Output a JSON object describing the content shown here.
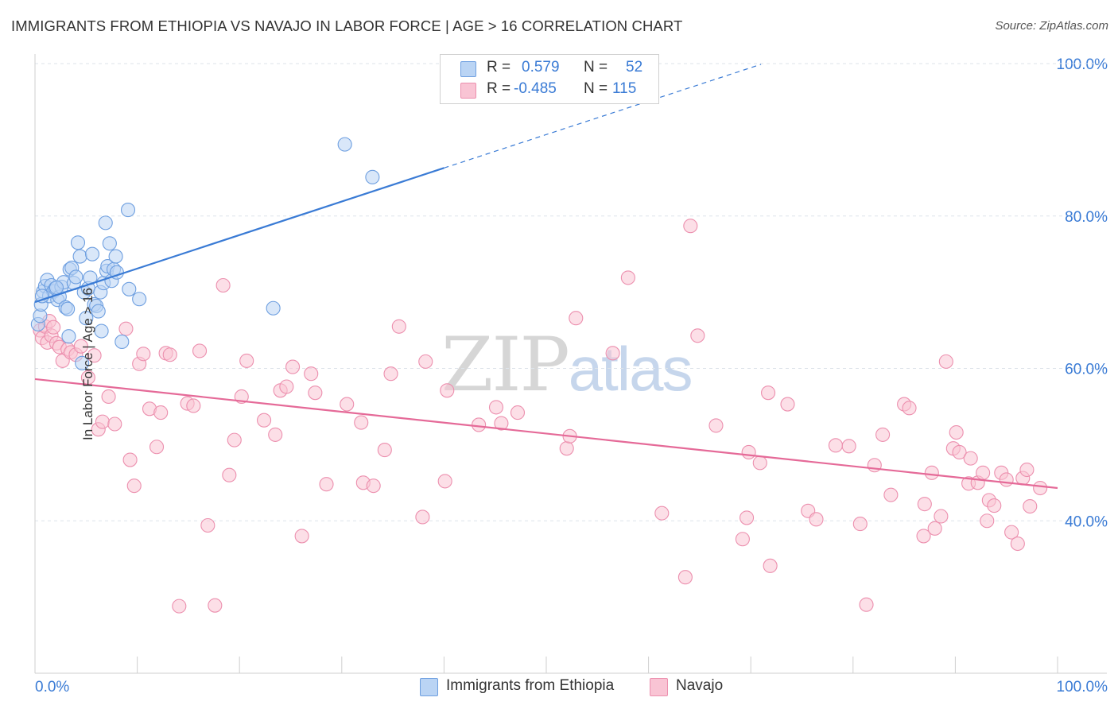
{
  "title": "IMMIGRANTS FROM ETHIOPIA VS NAVAJO IN LABOR FORCE | AGE > 16 CORRELATION CHART",
  "source": "Source: ZipAtlas.com",
  "watermark": {
    "zip": "ZIP",
    "atlas": "atlas"
  },
  "stats": {
    "r_label": "R =",
    "n_label": "N =",
    "rows": [
      {
        "r": "0.579",
        "n": "52",
        "color": "#bad4f4",
        "border": "#6e9fe0"
      },
      {
        "r": "-0.485",
        "n": "115",
        "color": "#f9c4d4",
        "border": "#ec8fae"
      }
    ]
  },
  "legend": [
    {
      "label": "Immigrants from Ethiopia",
      "color": "#bad4f4",
      "border": "#6e9fe0"
    },
    {
      "label": "Navajo",
      "color": "#f9c4d4",
      "border": "#ec8fae"
    }
  ],
  "colors": {
    "blue": "#3a7bd5",
    "blue_fill": "#bad4f4",
    "blue_edge": "#6e9fe0",
    "pink": "#e56a98",
    "pink_fill": "#f9c4d4",
    "pink_edge": "#ec8fae",
    "grid": "#dde3ea",
    "axis_text": "#3a7bd5"
  },
  "chart_data": {
    "type": "scatter",
    "title": "IMMIGRANTS FROM ETHIOPIA VS NAVAJO IN LABOR FORCE | AGE > 16 CORRELATION CHART",
    "xlabel": "",
    "ylabel": "In Labor Force | Age > 16",
    "xlim": [
      0,
      100
    ],
    "ylim": [
      20,
      102
    ],
    "x_tick_labels": [
      "0.0%",
      "100.0%"
    ],
    "y_ticks": [
      40,
      60,
      80,
      100
    ],
    "y_tick_labels": [
      "40.0%",
      "60.0%",
      "80.0%",
      "100.0%"
    ],
    "grid": true,
    "legend_position": "bottom-center",
    "series": [
      {
        "name": "Immigrants from Ethiopia",
        "r": 0.579,
        "n": 52,
        "trend": {
          "x0": 0,
          "y0": 68.7,
          "x1": 40,
          "y1": 86.3,
          "dashed_to_x": 71,
          "dashed_to_y": 99.9
        },
        "points": [
          [
            0.3,
            65.8
          ],
          [
            0.5,
            66.9
          ],
          [
            0.6,
            68.4
          ],
          [
            0.8,
            70.1
          ],
          [
            1.0,
            70.8
          ],
          [
            1.2,
            71.6
          ],
          [
            1.4,
            69.5
          ],
          [
            1.6,
            70.9
          ],
          [
            1.8,
            70.1
          ],
          [
            2.0,
            70.5
          ],
          [
            2.2,
            69.0
          ],
          [
            2.4,
            69.4
          ],
          [
            2.6,
            70.7
          ],
          [
            2.8,
            71.3
          ],
          [
            3.0,
            68.0
          ],
          [
            3.2,
            67.8
          ],
          [
            3.4,
            73.0
          ],
          [
            3.6,
            73.2
          ],
          [
            3.8,
            71.2
          ],
          [
            4.0,
            72.0
          ],
          [
            4.2,
            76.5
          ],
          [
            4.4,
            74.7
          ],
          [
            4.6,
            60.7
          ],
          [
            4.8,
            70.0
          ],
          [
            5.0,
            66.6
          ],
          [
            5.2,
            70.5
          ],
          [
            5.4,
            71.9
          ],
          [
            5.6,
            75.0
          ],
          [
            5.8,
            68.4
          ],
          [
            6.0,
            68.2
          ],
          [
            6.2,
            67.5
          ],
          [
            6.4,
            70.0
          ],
          [
            6.5,
            64.9
          ],
          [
            6.7,
            71.2
          ],
          [
            6.9,
            79.1
          ],
          [
            7.0,
            72.8
          ],
          [
            7.1,
            73.4
          ],
          [
            7.3,
            76.4
          ],
          [
            7.5,
            71.5
          ],
          [
            7.7,
            73.0
          ],
          [
            7.9,
            74.7
          ],
          [
            8.0,
            72.6
          ],
          [
            8.5,
            63.5
          ],
          [
            9.1,
            80.8
          ],
          [
            9.2,
            70.4
          ],
          [
            10.2,
            69.1
          ],
          [
            23.3,
            67.9
          ],
          [
            3.3,
            64.2
          ],
          [
            0.7,
            69.5
          ],
          [
            2.1,
            70.6
          ],
          [
            30.3,
            89.4
          ],
          [
            33.0,
            85.1
          ]
        ]
      },
      {
        "name": "Navajo",
        "r": -0.485,
        "n": 115,
        "trend": {
          "x0": 0,
          "y0": 58.6,
          "x1": 100,
          "y1": 44.3
        },
        "points": [
          [
            0.5,
            65.0
          ],
          [
            0.7,
            64.0
          ],
          [
            1.0,
            65.5
          ],
          [
            1.2,
            63.4
          ],
          [
            1.4,
            66.2
          ],
          [
            1.6,
            64.3
          ],
          [
            1.8,
            65.4
          ],
          [
            2.1,
            63.3
          ],
          [
            2.4,
            62.8
          ],
          [
            2.7,
            61.0
          ],
          [
            3.2,
            62.5
          ],
          [
            3.5,
            62.1
          ],
          [
            4.0,
            61.8
          ],
          [
            4.5,
            62.9
          ],
          [
            5.2,
            58.8
          ],
          [
            5.8,
            61.7
          ],
          [
            6.2,
            52.0
          ],
          [
            6.6,
            53.0
          ],
          [
            7.2,
            56.3
          ],
          [
            7.8,
            52.7
          ],
          [
            8.9,
            65.2
          ],
          [
            9.3,
            48.0
          ],
          [
            9.7,
            44.6
          ],
          [
            10.2,
            60.6
          ],
          [
            10.6,
            61.9
          ],
          [
            11.2,
            54.7
          ],
          [
            11.9,
            49.7
          ],
          [
            12.3,
            54.2
          ],
          [
            12.8,
            62.0
          ],
          [
            13.2,
            61.8
          ],
          [
            14.1,
            28.8
          ],
          [
            14.9,
            55.4
          ],
          [
            15.5,
            55.1
          ],
          [
            16.1,
            62.3
          ],
          [
            16.9,
            39.4
          ],
          [
            17.6,
            28.9
          ],
          [
            18.4,
            70.9
          ],
          [
            19.0,
            46.0
          ],
          [
            19.5,
            50.6
          ],
          [
            20.2,
            56.3
          ],
          [
            20.7,
            61.0
          ],
          [
            22.4,
            53.2
          ],
          [
            23.5,
            51.3
          ],
          [
            24.0,
            57.1
          ],
          [
            24.6,
            57.6
          ],
          [
            25.2,
            60.2
          ],
          [
            26.1,
            38.0
          ],
          [
            27.0,
            59.3
          ],
          [
            27.4,
            56.8
          ],
          [
            28.5,
            44.8
          ],
          [
            30.5,
            55.3
          ],
          [
            31.9,
            52.9
          ],
          [
            32.1,
            45.0
          ],
          [
            33.1,
            44.6
          ],
          [
            34.2,
            49.3
          ],
          [
            34.8,
            59.3
          ],
          [
            35.6,
            65.5
          ],
          [
            37.9,
            40.5
          ],
          [
            38.2,
            60.9
          ],
          [
            40.1,
            45.2
          ],
          [
            40.3,
            57.1
          ],
          [
            43.4,
            52.6
          ],
          [
            45.1,
            54.9
          ],
          [
            45.6,
            52.8
          ],
          [
            47.2,
            54.2
          ],
          [
            52.0,
            49.5
          ],
          [
            52.3,
            51.1
          ],
          [
            52.9,
            66.6
          ],
          [
            56.5,
            62.0
          ],
          [
            58.0,
            71.9
          ],
          [
            61.3,
            41.0
          ],
          [
            63.6,
            32.6
          ],
          [
            64.1,
            78.7
          ],
          [
            64.8,
            64.3
          ],
          [
            66.6,
            52.5
          ],
          [
            69.2,
            37.6
          ],
          [
            69.6,
            40.4
          ],
          [
            69.8,
            49.0
          ],
          [
            70.9,
            47.6
          ],
          [
            71.7,
            56.8
          ],
          [
            71.9,
            34.1
          ],
          [
            73.6,
            55.3
          ],
          [
            75.6,
            41.3
          ],
          [
            76.4,
            40.2
          ],
          [
            78.3,
            49.9
          ],
          [
            79.6,
            49.8
          ],
          [
            80.7,
            39.6
          ],
          [
            81.3,
            29.0
          ],
          [
            82.1,
            47.3
          ],
          [
            82.9,
            51.3
          ],
          [
            83.7,
            43.4
          ],
          [
            85.0,
            55.3
          ],
          [
            85.5,
            54.8
          ],
          [
            86.9,
            38.0
          ],
          [
            87.0,
            42.2
          ],
          [
            87.7,
            46.3
          ],
          [
            88.0,
            39.0
          ],
          [
            88.6,
            40.6
          ],
          [
            89.1,
            60.9
          ],
          [
            89.8,
            49.5
          ],
          [
            90.1,
            51.6
          ],
          [
            90.4,
            49.0
          ],
          [
            91.3,
            44.9
          ],
          [
            91.5,
            48.2
          ],
          [
            92.2,
            45.0
          ],
          [
            92.7,
            46.3
          ],
          [
            93.1,
            40.0
          ],
          [
            93.3,
            42.7
          ],
          [
            93.8,
            42.0
          ],
          [
            94.5,
            46.3
          ],
          [
            95.0,
            45.4
          ],
          [
            95.5,
            38.5
          ],
          [
            96.1,
            37.0
          ],
          [
            96.6,
            45.6
          ],
          [
            97.0,
            46.7
          ],
          [
            97.3,
            41.9
          ],
          [
            98.3,
            44.3
          ]
        ]
      }
    ]
  }
}
